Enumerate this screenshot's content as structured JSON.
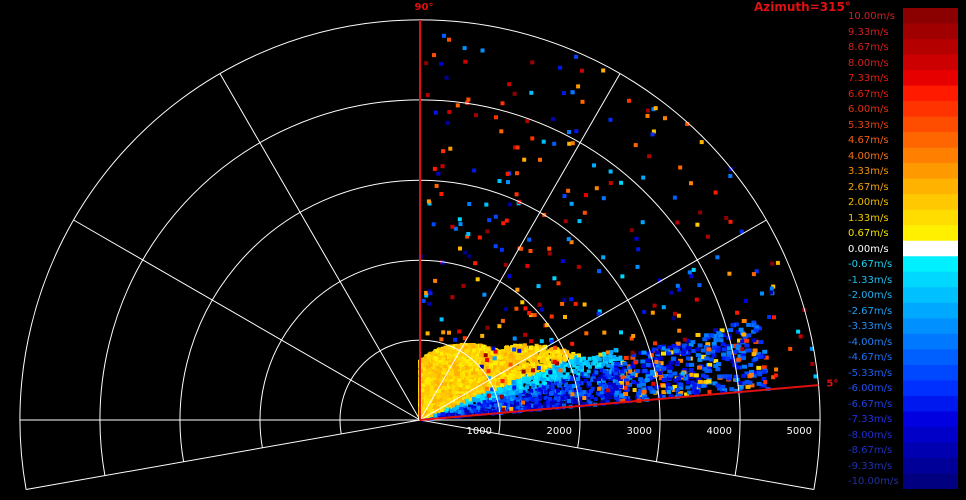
{
  "azimuth_label": "Azimuth=315°",
  "chart_data": {
    "type": "heatmap",
    "title": "",
    "radial_axis": {
      "min": 0,
      "max": 5000,
      "ticks": [
        1000,
        2000,
        3000,
        4000,
        5000
      ],
      "tick_labels": [
        "1000",
        "2000",
        "3000",
        "4000",
        "5000"
      ]
    },
    "angle_axis": {
      "min_deg": -10,
      "max_deg": 190,
      "grid_step_deg": 30
    },
    "sector": {
      "start_deg": 5,
      "end_deg": 90,
      "start_label": "5°",
      "end_label": "90°",
      "color": "#e01010"
    },
    "colorbar": {
      "min": -10,
      "max": 10,
      "unit": "m/s",
      "entries": [
        {
          "label": "10.00m/s",
          "color": "#8b0000",
          "text_color": "#d02020"
        },
        {
          "label": "9.33m/s",
          "color": "#a00000",
          "text_color": "#d02020"
        },
        {
          "label": "8.67m/s",
          "color": "#b50000",
          "text_color": "#d02020"
        },
        {
          "label": "8.00m/s",
          "color": "#cc0000",
          "text_color": "#d02020"
        },
        {
          "label": "7.33m/s",
          "color": "#e60000",
          "text_color": "#e02010"
        },
        {
          "label": "6.67m/s",
          "color": "#ff1a00",
          "text_color": "#e02010"
        },
        {
          "label": "6.00m/s",
          "color": "#ff3300",
          "text_color": "#e03010"
        },
        {
          "label": "5.33m/s",
          "color": "#ff4d00",
          "text_color": "#e04010"
        },
        {
          "label": "4.67m/s",
          "color": "#ff6600",
          "text_color": "#f06010"
        },
        {
          "label": "4.00m/s",
          "color": "#ff8000",
          "text_color": "#f07010"
        },
        {
          "label": "3.33m/s",
          "color": "#ff9900",
          "text_color": "#f09010"
        },
        {
          "label": "2.67m/s",
          "color": "#ffb300",
          "text_color": "#f0a010"
        },
        {
          "label": "2.00m/s",
          "color": "#ffc800",
          "text_color": "#f0b800"
        },
        {
          "label": "1.33m/s",
          "color": "#ffdd00",
          "text_color": "#f0c800"
        },
        {
          "label": "0.67m/s",
          "color": "#fff000",
          "text_color": "#f0e000"
        },
        {
          "label": "0.00m/s",
          "color": "#ffffff",
          "text_color": "#ffffff"
        },
        {
          "label": "-0.67m/s",
          "color": "#00f0ff",
          "text_color": "#20d0f0"
        },
        {
          "label": "-1.33m/s",
          "color": "#00d8ff",
          "text_color": "#20c0f0"
        },
        {
          "label": "-2.00m/s",
          "color": "#00c0ff",
          "text_color": "#20b0f0"
        },
        {
          "label": "-2.67m/s",
          "color": "#00a8ff",
          "text_color": "#20a0f0"
        },
        {
          "label": "-3.33m/s",
          "color": "#0090ff",
          "text_color": "#2090f0"
        },
        {
          "label": "-4.00m/s",
          "color": "#0078ff",
          "text_color": "#2080f0"
        },
        {
          "label": "-4.67m/s",
          "color": "#0060ff",
          "text_color": "#2070f0"
        },
        {
          "label": "-5.33m/s",
          "color": "#0048ff",
          "text_color": "#2060f0"
        },
        {
          "label": "-6.00m/s",
          "color": "#0030ff",
          "text_color": "#2050f0"
        },
        {
          "label": "-6.67m/s",
          "color": "#0018f0",
          "text_color": "#2040e0"
        },
        {
          "label": "-7.33m/s",
          "color": "#0000e0",
          "text_color": "#2030e0"
        },
        {
          "label": "-8.00m/s",
          "color": "#0000c8",
          "text_color": "#2030d0"
        },
        {
          "label": "-8.67m/s",
          "color": "#0000b0",
          "text_color": "#2030c0"
        },
        {
          "label": "-9.33m/s",
          "color": "#000098",
          "text_color": "#2030b0"
        },
        {
          "label": "-10.00m/s",
          "color": "#000080",
          "text_color": "#2030a0"
        }
      ]
    }
  }
}
